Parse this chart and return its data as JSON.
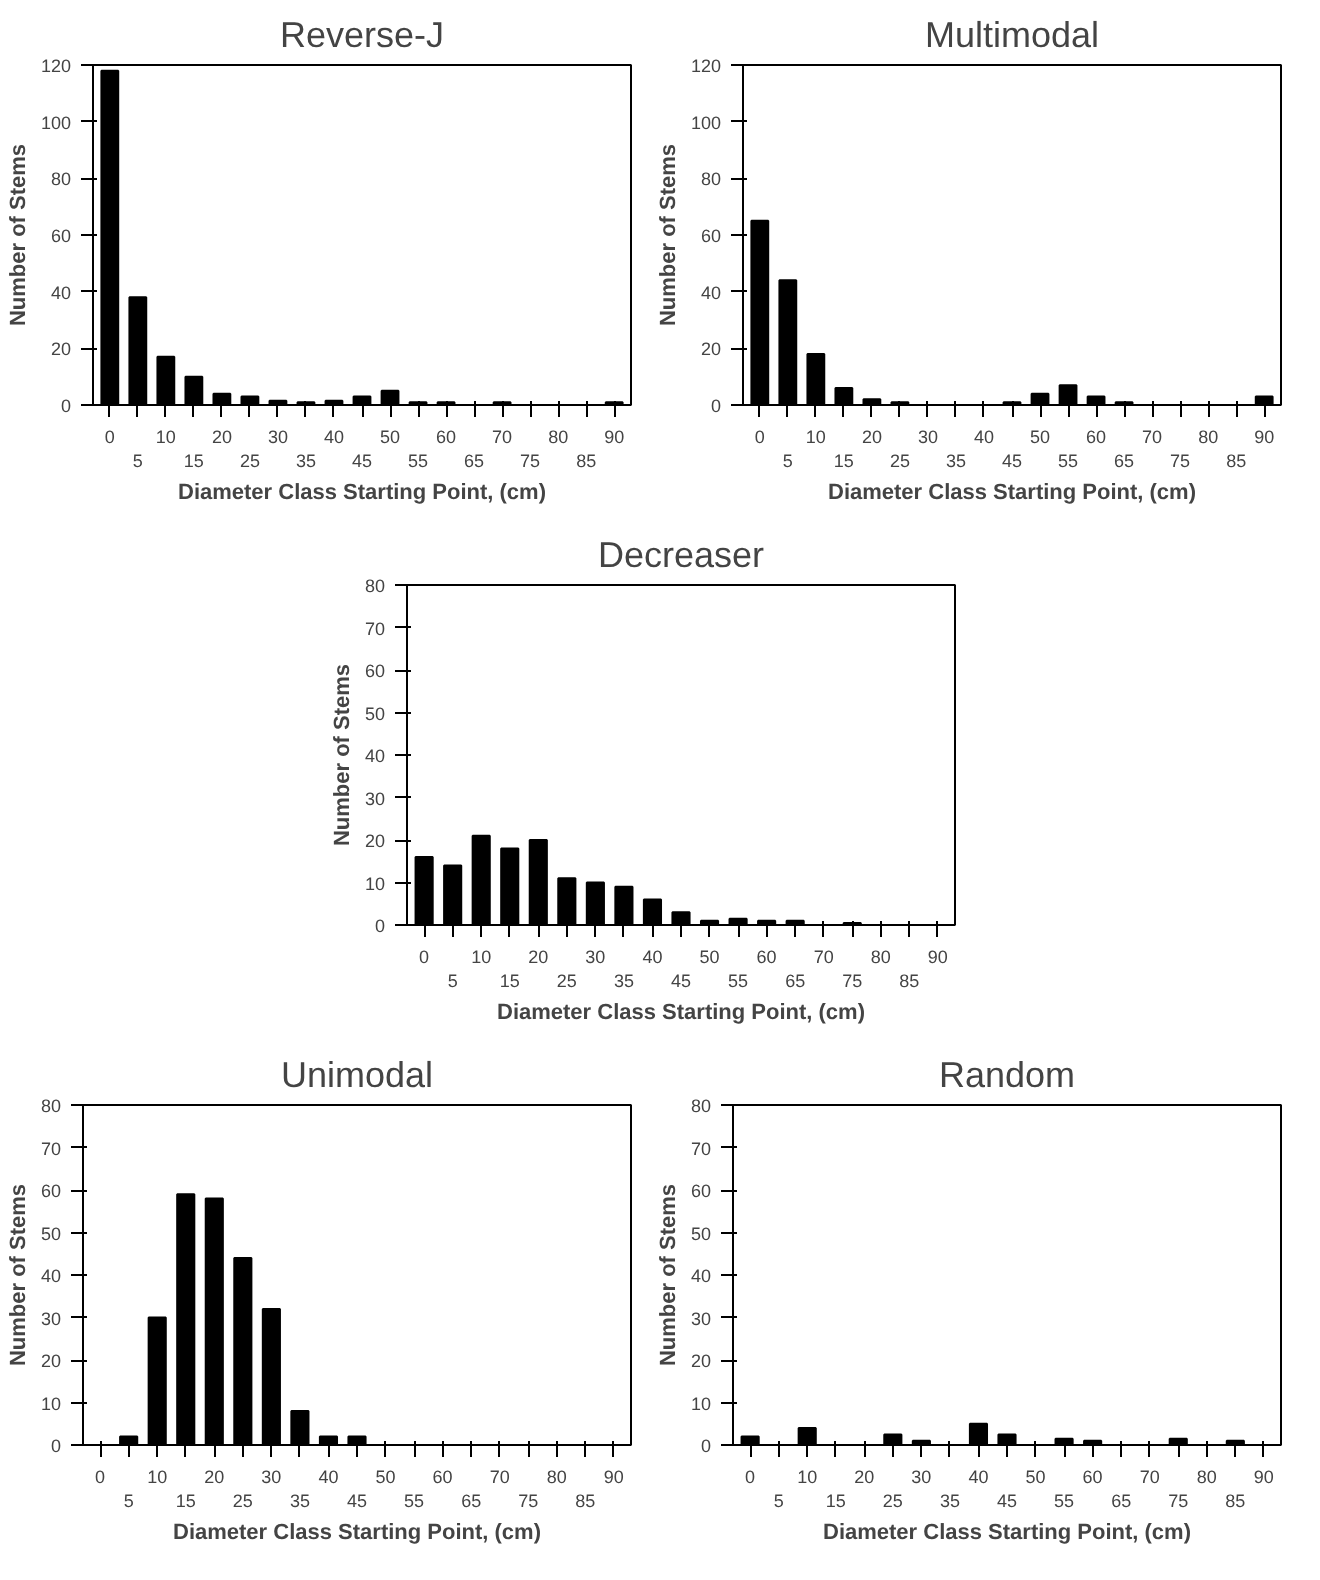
{
  "chart_data": [
    {
      "type": "bar",
      "title": "Reverse-J",
      "xlabel": "Diameter Class Starting Point, (cm)",
      "ylabel": "Number of Stems",
      "categories": [
        "0",
        "5",
        "10",
        "15",
        "20",
        "25",
        "30",
        "35",
        "40",
        "45",
        "50",
        "55",
        "60",
        "65",
        "70",
        "75",
        "80",
        "85",
        "90"
      ],
      "values": [
        118,
        38,
        17,
        10,
        4,
        3,
        1.5,
        1,
        1.5,
        3,
        5,
        1,
        1,
        0,
        1,
        0,
        0,
        0,
        1
      ],
      "color": "#000000",
      "ylim": [
        0,
        120
      ],
      "yticks": [
        0,
        20,
        40,
        60,
        80,
        100,
        120
      ],
      "grid": false
    },
    {
      "type": "bar",
      "title": "Multimodal",
      "xlabel": "Diameter Class Starting Point, (cm)",
      "ylabel": "Number of Stems",
      "categories": [
        "0",
        "5",
        "10",
        "15",
        "20",
        "25",
        "30",
        "35",
        "40",
        "45",
        "50",
        "55",
        "60",
        "65",
        "70",
        "75",
        "80",
        "85",
        "90"
      ],
      "values": [
        65,
        44,
        18,
        6,
        2,
        1,
        0,
        0,
        0,
        1,
        4,
        7,
        3,
        1,
        0,
        0,
        0,
        0,
        3
      ],
      "color": "#000000",
      "ylim": [
        0,
        120
      ],
      "yticks": [
        0,
        20,
        40,
        60,
        80,
        100,
        120
      ],
      "grid": false
    },
    {
      "type": "bar",
      "title": "Decreaser",
      "xlabel": "Diameter Class Starting Point, (cm)",
      "ylabel": "Number of Stems",
      "categories": [
        "0",
        "5",
        "10",
        "15",
        "20",
        "25",
        "30",
        "35",
        "40",
        "45",
        "50",
        "55",
        "60",
        "65",
        "70",
        "75",
        "80",
        "85",
        "90"
      ],
      "values": [
        16,
        14,
        21,
        18,
        20,
        11,
        10,
        9,
        6,
        3,
        1,
        1.5,
        1,
        1,
        0,
        0.5,
        0,
        0,
        0
      ],
      "color": "#000000",
      "ylim": [
        0,
        80
      ],
      "yticks": [
        0,
        10,
        20,
        30,
        40,
        50,
        60,
        70,
        80
      ],
      "grid": false
    },
    {
      "type": "bar",
      "title": "Unimodal",
      "xlabel": "Diameter Class Starting Point, (cm)",
      "ylabel": "Number of Stems",
      "categories": [
        "0",
        "5",
        "10",
        "15",
        "20",
        "25",
        "30",
        "35",
        "40",
        "45",
        "50",
        "55",
        "60",
        "65",
        "70",
        "75",
        "80",
        "85",
        "90"
      ],
      "values": [
        0,
        2,
        30,
        59,
        58,
        44,
        32,
        8,
        2,
        2,
        0,
        0,
        0,
        0,
        0,
        0,
        0,
        0,
        0
      ],
      "color": "#000000",
      "ylim": [
        0,
        80
      ],
      "yticks": [
        0,
        10,
        20,
        30,
        40,
        50,
        60,
        70,
        80
      ],
      "grid": false
    },
    {
      "type": "bar",
      "title": "Random",
      "xlabel": "Diameter Class Starting Point, (cm)",
      "ylabel": "Number of Stems",
      "categories": [
        "0",
        "5",
        "10",
        "15",
        "20",
        "25",
        "30",
        "35",
        "40",
        "45",
        "50",
        "55",
        "60",
        "65",
        "70",
        "75",
        "80",
        "85",
        "90"
      ],
      "values": [
        2,
        0,
        4,
        0,
        0,
        2.5,
        1,
        0,
        5,
        2.5,
        0,
        1.5,
        1,
        0,
        0,
        1.5,
        0,
        1,
        0
      ],
      "color": "#000000",
      "ylim": [
        0,
        80
      ],
      "yticks": [
        0,
        10,
        20,
        30,
        40,
        50,
        60,
        70,
        80
      ],
      "grid": false
    }
  ]
}
